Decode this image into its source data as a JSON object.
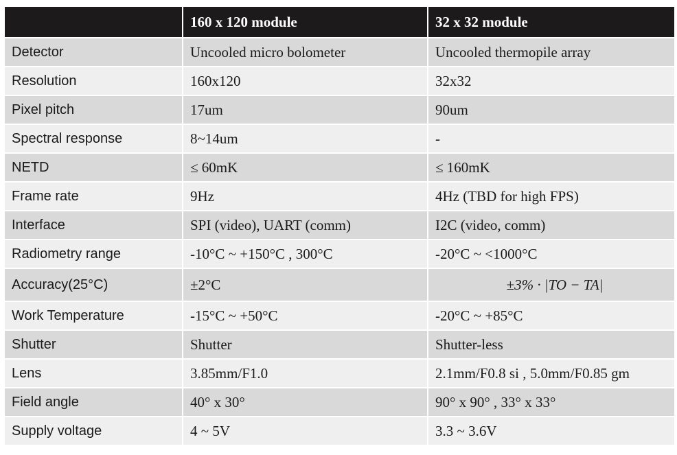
{
  "table": {
    "header": [
      "160 x 120 module",
      "32 x 32 module"
    ],
    "rows": [
      [
        "Detector",
        "Uncooled micro bolometer",
        "Uncooled thermopile array"
      ],
      [
        "Resolution",
        "160x120",
        "32x32"
      ],
      [
        "Pixel pitch",
        "17um",
        "90um"
      ],
      [
        "Spectral response",
        "8~14um",
        "-"
      ],
      [
        "NETD",
        "≤ 60mK",
        "≤ 160mK"
      ],
      [
        "Frame rate",
        "9Hz",
        "4Hz (TBD for high FPS)"
      ],
      [
        "Interface",
        "SPI (video), UART (comm)",
        "I2C (video, comm)"
      ],
      [
        "Radiometry range",
        "-10°C ~ +150°C , 300°C",
        "-20°C ~ <1000°C"
      ],
      [
        "Accuracy(25°C)",
        "±2°C",
        "±3% · |TO − TA|"
      ],
      [
        "Work Temperature",
        "-15°C ~ +50°C",
        "-20°C ~ +85°C"
      ],
      [
        "Shutter",
        "Shutter",
        "Shutter-less"
      ],
      [
        "Lens",
        "3.85mm/F1.0",
        "2.1mm/F0.8 si , 5.0mm/F0.85 gm"
      ],
      [
        "Field angle",
        "40° x 30°",
        "90° x 90° , 33° x 33°"
      ],
      [
        "Supply voltage",
        "4 ~ 5V",
        "3.3 ~ 3.6V"
      ]
    ]
  }
}
